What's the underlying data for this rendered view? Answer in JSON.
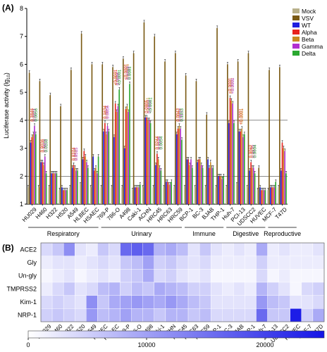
{
  "panelA": {
    "label": "(A)",
    "ylabel": "Luciferase activity (lg",
    "ylabel_sub": "10",
    "ylabel_end": ")",
    "yticks": [
      "1",
      "2",
      "3",
      "4",
      "5",
      "6",
      "7",
      "8"
    ],
    "legend": [
      {
        "name": "Mock",
        "color": "#b8b08a"
      },
      {
        "name": "VSV",
        "color": "#7a5a14"
      },
      {
        "name": "WT",
        "color": "#1f1fe0"
      },
      {
        "name": "Alpha",
        "color": "#e8231f"
      },
      {
        "name": "Beta",
        "color": "#c98a22"
      },
      {
        "name": "Gamma",
        "color": "#b12fd0"
      },
      {
        "name": "Delta",
        "color": "#2aa830"
      }
    ],
    "groups": [
      {
        "name": "Respiratory",
        "span": [
          0,
          6
        ]
      },
      {
        "name": "Urinary",
        "span": [
          7,
          14
        ]
      },
      {
        "name": "Immune",
        "span": [
          15,
          18
        ]
      },
      {
        "name": "Digestive",
        "span": [
          19,
          22
        ]
      },
      {
        "name": "Reproductive",
        "span": [
          23,
          25
        ]
      }
    ],
    "annotations": [
      {
        "cell": 0,
        "series": "Alpha",
        "text": "0.3846"
      },
      {
        "cell": 0,
        "series": "Beta",
        "text": "0.1041"
      },
      {
        "cell": 0,
        "series": "Gamma",
        "text": "0.0221"
      },
      {
        "cell": 0,
        "series": "Delta",
        "text": "0.0056"
      },
      {
        "cell": 1,
        "series": "Alpha",
        "text": "0.0836"
      },
      {
        "cell": 1,
        "series": "Beta",
        "text": "0.1259"
      },
      {
        "cell": 1,
        "series": "Gamma",
        "text": "0.0059"
      },
      {
        "cell": 1,
        "series": "Delta",
        "text": "0.0103"
      },
      {
        "cell": 4,
        "series": "Alpha",
        "text": "0.0374"
      },
      {
        "cell": 4,
        "series": "Beta",
        "text": "0.0407"
      },
      {
        "cell": 4,
        "series": "Gamma",
        "text": "0.0515"
      },
      {
        "cell": 7,
        "series": "Alpha",
        "text": "0.1634"
      },
      {
        "cell": 7,
        "series": "Beta",
        "text": "0.0071"
      },
      {
        "cell": 7,
        "series": "Gamma",
        "text": "0.0056"
      },
      {
        "cell": 8,
        "series": "Alpha",
        "text": "<0.0001"
      },
      {
        "cell": 8,
        "series": "Beta",
        "text": "0.0002"
      },
      {
        "cell": 8,
        "series": "Gamma",
        "text": "0.0006"
      },
      {
        "cell": 8,
        "series": "Delta",
        "text": "<0.0001"
      },
      {
        "cell": 9,
        "series": "Alpha",
        "text": "<0.0001"
      },
      {
        "cell": 9,
        "series": "Beta",
        "text": "<0.0001"
      },
      {
        "cell": 9,
        "series": "Gamma",
        "text": "0.0018"
      },
      {
        "cell": 9,
        "series": "Delta",
        "text": "0.0001"
      },
      {
        "cell": 11,
        "series": "Alpha",
        "text": "0.0005"
      },
      {
        "cell": 11,
        "series": "Beta",
        "text": "<0.0001"
      },
      {
        "cell": 11,
        "series": "Gamma",
        "text": "0.0002"
      },
      {
        "cell": 11,
        "series": "Delta",
        "text": "<0.0001"
      },
      {
        "cell": 12,
        "series": "Alpha",
        "text": "0.0244"
      },
      {
        "cell": 12,
        "series": "Beta",
        "text": "0.0176"
      },
      {
        "cell": 12,
        "series": "Gamma",
        "text": "0.0105"
      },
      {
        "cell": 12,
        "series": "Delta",
        "text": "0.0054"
      },
      {
        "cell": 14,
        "series": "Alpha",
        "text": "0.0042"
      },
      {
        "cell": 14,
        "series": "Beta",
        "text": "0.0062"
      },
      {
        "cell": 14,
        "series": "Gamma",
        "text": "0.0237"
      },
      {
        "cell": 14,
        "series": "Delta",
        "text": "0.1353"
      },
      {
        "cell": 19,
        "series": "Alpha",
        "text": "<0.0001"
      },
      {
        "cell": 19,
        "series": "Beta",
        "text": "<0.0001"
      },
      {
        "cell": 19,
        "series": "Gamma",
        "text": "<0.0001"
      },
      {
        "cell": 20,
        "series": "Alpha",
        "text": "<0.0001"
      },
      {
        "cell": 20,
        "series": "Beta",
        "text": "<0.0001"
      },
      {
        "cell": 21,
        "series": "Alpha",
        "text": "0.0062"
      },
      {
        "cell": 21,
        "series": "Beta",
        "text": "0.0015"
      },
      {
        "cell": 21,
        "series": "Gamma",
        "text": "0.0173"
      },
      {
        "cell": 21,
        "series": "Delta",
        "text": "0.0004"
      },
      {
        "cell": 25,
        "series": "Alpha",
        "text": "0.0084"
      },
      {
        "cell": 25,
        "series": "Beta",
        "text": "0.1260"
      },
      {
        "cell": 25,
        "series": "Gamma",
        "text": "0.3334"
      }
    ]
  },
  "panelB": {
    "label": "(B)",
    "rows": [
      "ACE2",
      "Gly",
      "Un-gly",
      "TMPRSS2",
      "Kim-1",
      "NRP-1"
    ],
    "colorbar_ticks": [
      "0",
      "10000",
      "20000"
    ]
  },
  "chart_data": [
    {
      "type": "bar",
      "title": "",
      "xlabel": "",
      "ylabel": "Luciferase activity (lg10)",
      "ylim": [
        1,
        8
      ],
      "grid": false,
      "legend_position": "top-right",
      "categories": [
        "HU029",
        "H460",
        "H322",
        "H520",
        "A549",
        "HLBEC",
        "HSAEC",
        "769-P",
        "786-O",
        "A498",
        "Caki-1",
        "ACHN",
        "HRC45",
        "HRC63",
        "HRC59",
        "BCP-1",
        "BC-3",
        "BJAB",
        "THP-1",
        "Huh-7",
        "PCI-13",
        "UDSCC2",
        "HUVEC",
        "MCF-7",
        "T47D"
      ],
      "series": [
        {
          "name": "Mock",
          "values": [
            1.6,
            1.6,
            1.6,
            1.5,
            1.6,
            1.7,
            1.6,
            1.6,
            1.6,
            1.6,
            1.5,
            1.6,
            1.6,
            1.6,
            1.6,
            1.6,
            1.6,
            1.6,
            1.6,
            1.6,
            1.7,
            1.6,
            1.5,
            1.5,
            1.6
          ]
        },
        {
          "name": "VSV",
          "values": [
            5.7,
            5.4,
            4.9,
            4.5,
            5.8,
            7.1,
            6.0,
            6.0,
            5.9,
            6.2,
            6.4,
            7.5,
            7.0,
            6.1,
            6.4,
            5.6,
            5.4,
            4.2,
            7.3,
            6.0,
            6.1,
            6.4,
            2.3,
            5.8,
            5.9
          ]
        },
        {
          "name": "WT",
          "values": [
            3.2,
            2.5,
            2.1,
            1.6,
            2.3,
            2.6,
            2.7,
            3.6,
            3.4,
            3.0,
            1.6,
            4.1,
            2.4,
            1.8,
            3.5,
            2.6,
            2.5,
            2.6,
            2.0,
            3.9,
            3.6,
            2.2,
            1.6,
            1.6,
            2.2
          ]
        },
        {
          "name": "Alpha",
          "values": [
            3.4,
            2.5,
            2.1,
            1.5,
            2.4,
            2.9,
            2.2,
            3.9,
            4.6,
            4.4,
            1.6,
            4.1,
            2.8,
            1.8,
            3.7,
            2.6,
            2.6,
            2.3,
            2.0,
            4.8,
            3.6,
            2.5,
            1.5,
            1.6,
            3.2
          ]
        },
        {
          "name": "Beta",
          "values": [
            3.5,
            2.4,
            2.1,
            1.5,
            2.3,
            2.7,
            2.3,
            3.5,
            4.3,
            4.5,
            1.6,
            4.0,
            2.6,
            1.7,
            3.8,
            2.4,
            2.6,
            2.5,
            2.0,
            4.7,
            3.7,
            2.3,
            1.5,
            1.6,
            3.0
          ]
        },
        {
          "name": "Gamma",
          "values": [
            3.8,
            2.7,
            2.1,
            1.5,
            2.2,
            2.5,
            2.1,
            3.8,
            4.5,
            4.3,
            1.6,
            4.0,
            2.3,
            1.7,
            3.7,
            2.6,
            2.4,
            2.3,
            1.9,
            4.6,
            3.4,
            2.3,
            1.5,
            1.6,
            2.9
          ]
        },
        {
          "name": "Delta",
          "values": [
            3.5,
            2.1,
            2.1,
            1.5,
            2.2,
            2.3,
            2.7,
            3.6,
            5.1,
            5.3,
            1.7,
            3.9,
            2.2,
            1.8,
            3.3,
            2.3,
            2.3,
            2.3,
            2.0,
            3.9,
            3.5,
            2.1,
            1.5,
            1.8,
            2.1
          ]
        }
      ]
    },
    {
      "type": "heatmap",
      "title": "",
      "x": [
        "HU029",
        "H460",
        "H322",
        "H520",
        "A549",
        "HLBEC",
        "HSAEC",
        "769-P",
        "786-O",
        "A498",
        "Caki-1",
        "ACHN",
        "HRC45",
        "HRC63",
        "HRC59",
        "BCP-1",
        "BC-3",
        "BJAB",
        "THP-1",
        "Huh-7",
        "PCI-13",
        "UDSCC2",
        "HUVEC",
        "MCF-7",
        "T47D"
      ],
      "y": [
        "ACE2",
        "Gly",
        "Un-gly",
        "TMPRSS2",
        "Kim-1",
        "NRP-1"
      ],
      "zlim": [
        0,
        25000
      ],
      "values": [
        [
          4000,
          6000,
          12000,
          3000,
          2000,
          6000,
          4000,
          16000,
          17000,
          16000,
          8000,
          9000,
          7000,
          3000,
          6000,
          3000,
          2000,
          3000,
          2000,
          9000,
          2000,
          3000,
          2000,
          2000,
          3000
        ],
        [
          2000,
          3000,
          3000,
          2000,
          3000,
          4000,
          3000,
          6000,
          7000,
          10000,
          5000,
          6000,
          4000,
          3000,
          4000,
          2000,
          2000,
          2000,
          2000,
          5000,
          2000,
          2000,
          2000,
          2000,
          2000
        ],
        [
          1000,
          2000,
          3000,
          1000,
          2000,
          3000,
          2000,
          5000,
          6000,
          9000,
          4000,
          5000,
          3000,
          2000,
          3000,
          1000,
          1000,
          1000,
          1000,
          4000,
          1000,
          2000,
          1000,
          1000,
          1000
        ],
        [
          2000,
          4000,
          6000,
          3000,
          4000,
          7000,
          8000,
          5000,
          7000,
          6000,
          9000,
          8000,
          7000,
          5000,
          5000,
          3000,
          2000,
          3000,
          2000,
          8000,
          5000,
          3000,
          1000,
          4000,
          5000
        ],
        [
          4000,
          5000,
          4000,
          3000,
          12000,
          6000,
          9000,
          10000,
          11000,
          10000,
          9000,
          11000,
          9000,
          7000,
          6000,
          3000,
          3000,
          3000,
          3000,
          11000,
          7000,
          6000,
          3000,
          3000,
          4000
        ],
        [
          5000,
          6000,
          5000,
          4000,
          11000,
          7000,
          8000,
          10000,
          8000,
          8000,
          6000,
          8000,
          8000,
          6000,
          7000,
          4000,
          4000,
          4000,
          4000,
          16000,
          6000,
          6000,
          24000,
          5000,
          9000
        ]
      ]
    }
  ]
}
